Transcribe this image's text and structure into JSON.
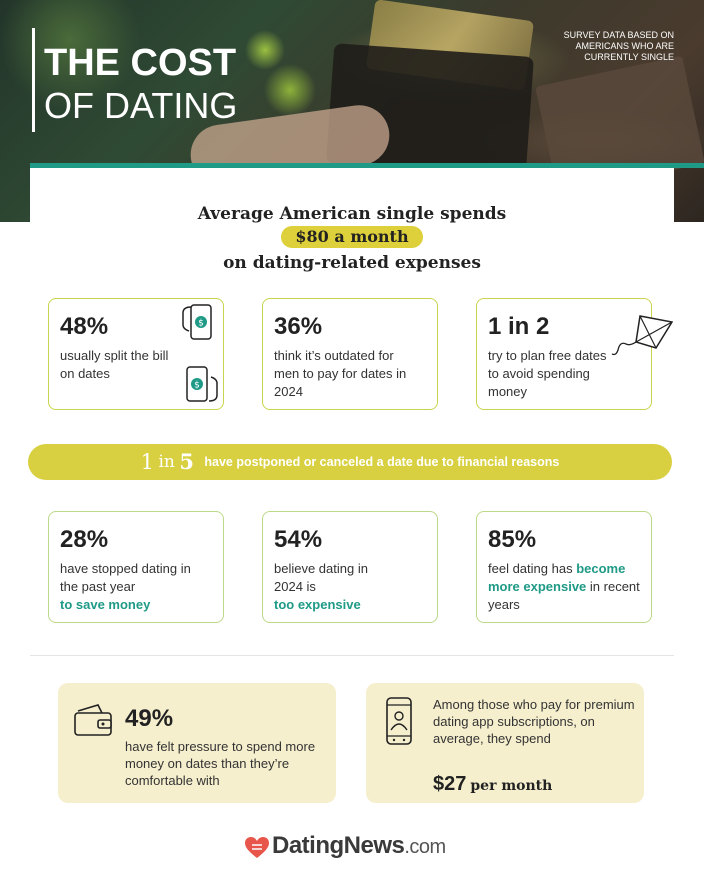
{
  "hero": {
    "title_line1": "THE COST",
    "title_line2": "OF DATING",
    "note": "SURVEY DATA BASED ON AMERICANS WHO ARE CURRENTLY SINGLE"
  },
  "headline": {
    "line1": "Average American single spends",
    "highlight": "$80 a month",
    "line3": "on dating-related expenses"
  },
  "stats_row1": [
    {
      "value": "48%",
      "text": "usually split the bill on dates",
      "icon": "phone-payment-icon"
    },
    {
      "value": "36%",
      "text": "think it’s outdated for men to pay for dates in 2024"
    },
    {
      "value": "1 in 2",
      "text": "try to plan free dates to avoid spending money",
      "icon": "kite-icon"
    }
  ],
  "banner": {
    "num1": "1",
    "word": "in",
    "num2": "5",
    "text": "have postponed or canceled a date due to financial reasons"
  },
  "stats_row2": [
    {
      "value": "28%",
      "text_plain": "have stopped dating in the past year",
      "text_highlight": "to save money"
    },
    {
      "value": "54%",
      "text_plain": "believe dating in 2024 is",
      "text_highlight": "too expensive"
    },
    {
      "value": "85%",
      "text_pre": "feel dating has",
      "text_highlight": "become more expensive",
      "text_post": "in recent years"
    }
  ],
  "pressure_card": {
    "value": "49%",
    "text": "have felt pressure to spend more money on dates than they’re comfortable with",
    "icon": "wallet-icon"
  },
  "app_card": {
    "text": "Among those who pay for premium dating app subscriptions, on average, they spend",
    "amount": "$27",
    "per": "per month",
    "icon": "dating-app-phone-icon"
  },
  "logo": {
    "brand": "DatingNews",
    "tld": ".com",
    "icon": "heart-logo-icon"
  },
  "colors": {
    "accent_yellow": "#d8d040",
    "teal": "#1f9a86",
    "card_cream": "#f5efce"
  }
}
